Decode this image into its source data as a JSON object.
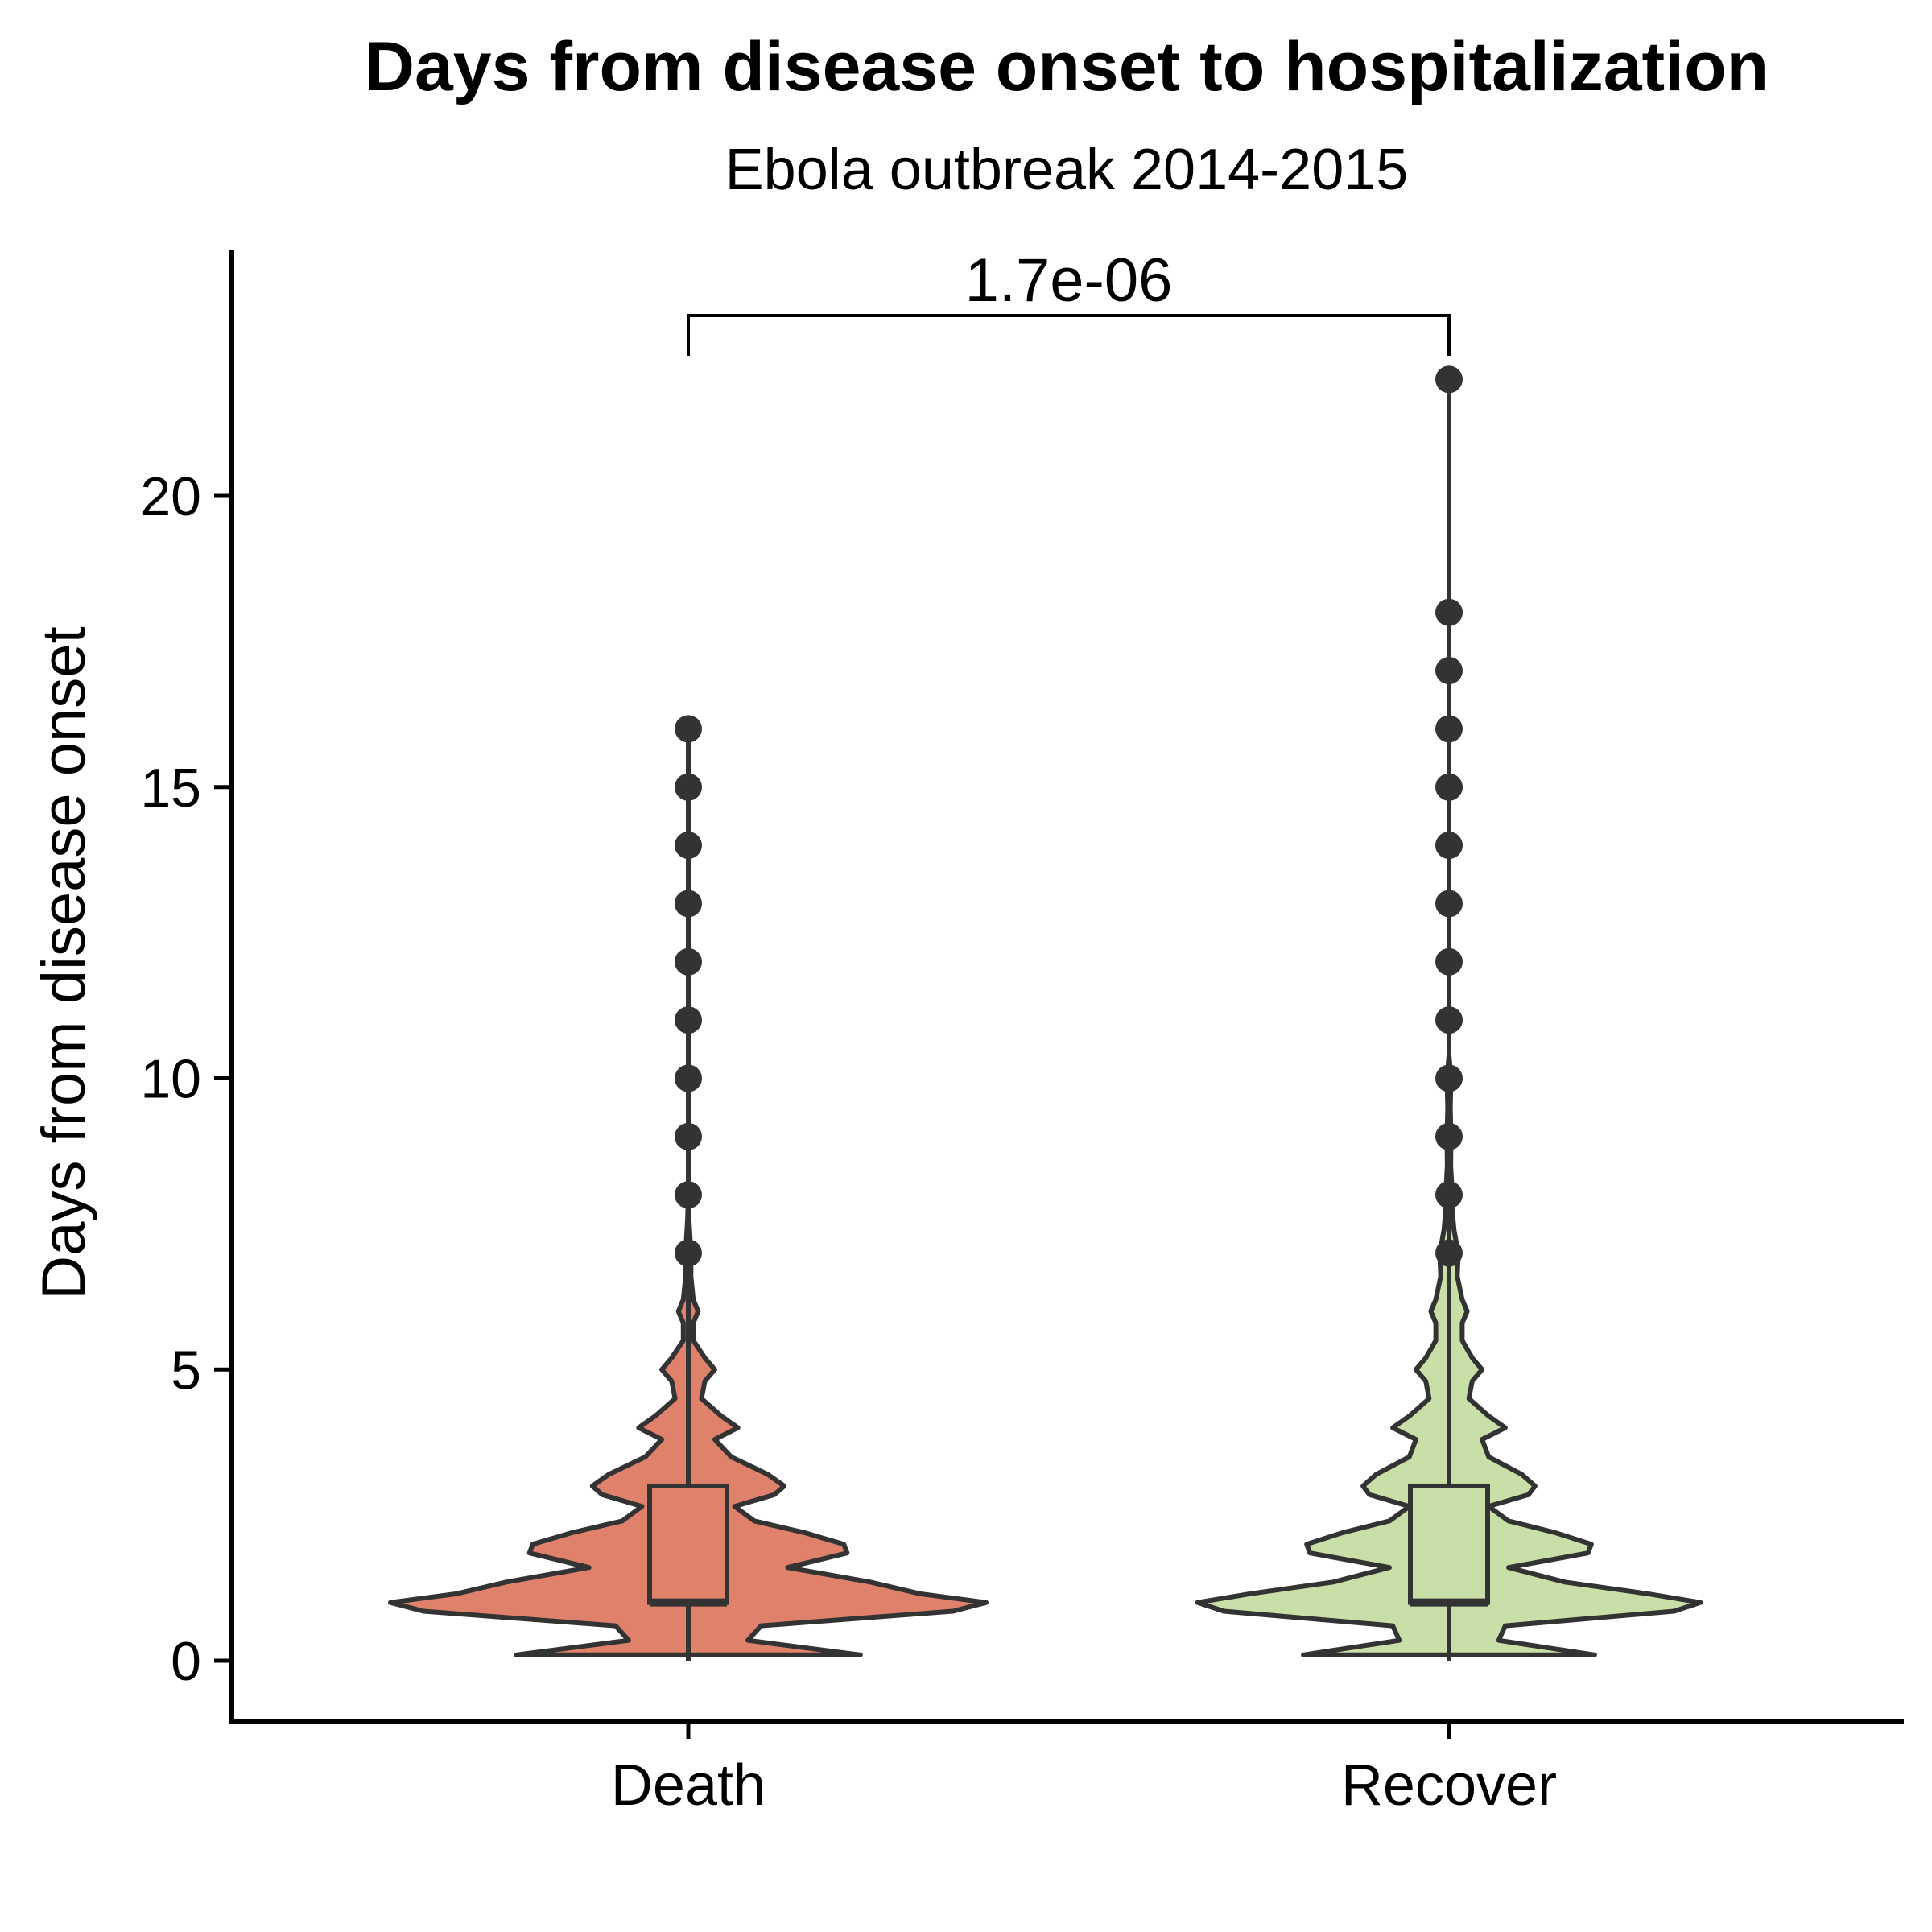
{
  "chart_data": {
    "type": "violin",
    "title": "Days from disease onset to hospitalization",
    "subtitle": "Ebola outbreak 2014-2015",
    "xlabel": "",
    "ylabel": "Days from disease onset",
    "ylim": [
      -1,
      24
    ],
    "yticks": [
      0,
      5,
      10,
      15,
      20
    ],
    "grid": false,
    "legend": "none",
    "categories": [
      "Death",
      "Recover"
    ],
    "groups": [
      {
        "name": "Death",
        "color": "#E0826B",
        "box": {
          "min": 0,
          "q1": 1,
          "median": 1,
          "q3": 3,
          "whisker_high": 6
        },
        "outliers": [
          7,
          8,
          9,
          10,
          11,
          12,
          13,
          14,
          15,
          16
        ],
        "density": [
          [
            0.1,
            0.52
          ],
          [
            0.35,
            0.18
          ],
          [
            0.6,
            0.22
          ],
          [
            0.85,
            0.8
          ],
          [
            1.0,
            0.9
          ],
          [
            1.15,
            0.7
          ],
          [
            1.35,
            0.55
          ],
          [
            1.6,
            0.3
          ],
          [
            1.85,
            0.48
          ],
          [
            2.0,
            0.47
          ],
          [
            2.2,
            0.35
          ],
          [
            2.4,
            0.2
          ],
          [
            2.65,
            0.14
          ],
          [
            2.85,
            0.26
          ],
          [
            3.0,
            0.29
          ],
          [
            3.2,
            0.24
          ],
          [
            3.5,
            0.13
          ],
          [
            3.8,
            0.08
          ],
          [
            4.0,
            0.15
          ],
          [
            4.2,
            0.1
          ],
          [
            4.5,
            0.04
          ],
          [
            4.8,
            0.05
          ],
          [
            5.0,
            0.08
          ],
          [
            5.2,
            0.05
          ],
          [
            5.5,
            0.015
          ],
          [
            5.8,
            0.015
          ],
          [
            6.0,
            0.03
          ],
          [
            6.2,
            0.015
          ],
          [
            6.6,
            0.008
          ],
          [
            7.0,
            0.008
          ],
          [
            7.6,
            0.002
          ],
          [
            8.0,
            0.0
          ]
        ]
      },
      {
        "name": "Recover",
        "color": "#C9DFA8",
        "box": {
          "min": 0,
          "q1": 1,
          "median": 1,
          "q3": 3,
          "whisker_high": 6
        },
        "outliers": [
          7,
          8,
          9,
          10,
          11,
          12,
          13,
          14,
          15,
          16,
          17,
          18,
          22
        ],
        "density": [
          [
            0.1,
            0.44
          ],
          [
            0.35,
            0.15
          ],
          [
            0.6,
            0.17
          ],
          [
            0.85,
            0.68
          ],
          [
            1.0,
            0.76
          ],
          [
            1.15,
            0.6
          ],
          [
            1.35,
            0.35
          ],
          [
            1.6,
            0.18
          ],
          [
            1.85,
            0.42
          ],
          [
            2.0,
            0.43
          ],
          [
            2.2,
            0.32
          ],
          [
            2.4,
            0.18
          ],
          [
            2.65,
            0.12
          ],
          [
            2.85,
            0.24
          ],
          [
            3.0,
            0.26
          ],
          [
            3.2,
            0.22
          ],
          [
            3.5,
            0.12
          ],
          [
            3.8,
            0.1
          ],
          [
            4.0,
            0.17
          ],
          [
            4.2,
            0.12
          ],
          [
            4.5,
            0.06
          ],
          [
            4.8,
            0.07
          ],
          [
            5.0,
            0.1
          ],
          [
            5.2,
            0.07
          ],
          [
            5.5,
            0.04
          ],
          [
            5.8,
            0.04
          ],
          [
            6.0,
            0.055
          ],
          [
            6.2,
            0.04
          ],
          [
            6.6,
            0.025
          ],
          [
            7.0,
            0.028
          ],
          [
            7.4,
            0.015
          ],
          [
            7.8,
            0.009
          ],
          [
            8.0,
            0.01
          ],
          [
            8.5,
            0.005
          ],
          [
            9.0,
            0.006
          ],
          [
            9.5,
            0.004
          ],
          [
            10.0,
            0.006
          ],
          [
            10.4,
            0.0
          ]
        ]
      }
    ],
    "comparison": {
      "from": "Death",
      "to": "Recover",
      "label": "1.7e-06",
      "y": 23
    }
  }
}
